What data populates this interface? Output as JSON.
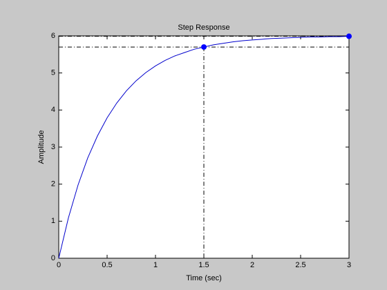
{
  "chart_data": {
    "type": "line",
    "title": "Step Response",
    "x_label": "Time (sec)",
    "y_label": "Amplitude",
    "x": [
      0,
      0.1,
      0.2,
      0.3,
      0.4,
      0.5,
      0.6,
      0.7,
      0.8,
      0.9,
      1.0,
      1.1,
      1.2,
      1.3,
      1.4,
      1.5,
      1.6,
      1.7,
      1.8,
      1.9,
      2.0,
      2.1,
      2.2,
      2.3,
      2.4,
      2.5,
      2.6,
      2.7,
      2.8,
      2.9,
      3.0
    ],
    "series": [
      {
        "color": "#0000cc",
        "values": [
          0,
          1.09,
          1.98,
          2.71,
          3.3,
          3.79,
          4.19,
          4.52,
          4.79,
          5.01,
          5.19,
          5.34,
          5.46,
          5.55,
          5.64,
          5.7,
          5.76,
          5.8,
          5.84,
          5.87,
          5.89,
          5.91,
          5.93,
          5.94,
          5.95,
          5.96,
          5.97,
          5.97,
          5.98,
          5.98,
          5.99
        ]
      }
    ],
    "markers": [
      {
        "x": 1.5,
        "y": 5.7
      },
      {
        "x": 3.0,
        "y": 5.99
      }
    ],
    "marker_color": "#0000ff",
    "xlim": [
      0,
      3
    ],
    "ylim": [
      0,
      6
    ],
    "xticks": [
      0,
      0.5,
      1,
      1.5,
      2,
      2.5,
      3
    ],
    "yticks": [
      0,
      1,
      2,
      3,
      4,
      5,
      6
    ],
    "grid": false
  }
}
